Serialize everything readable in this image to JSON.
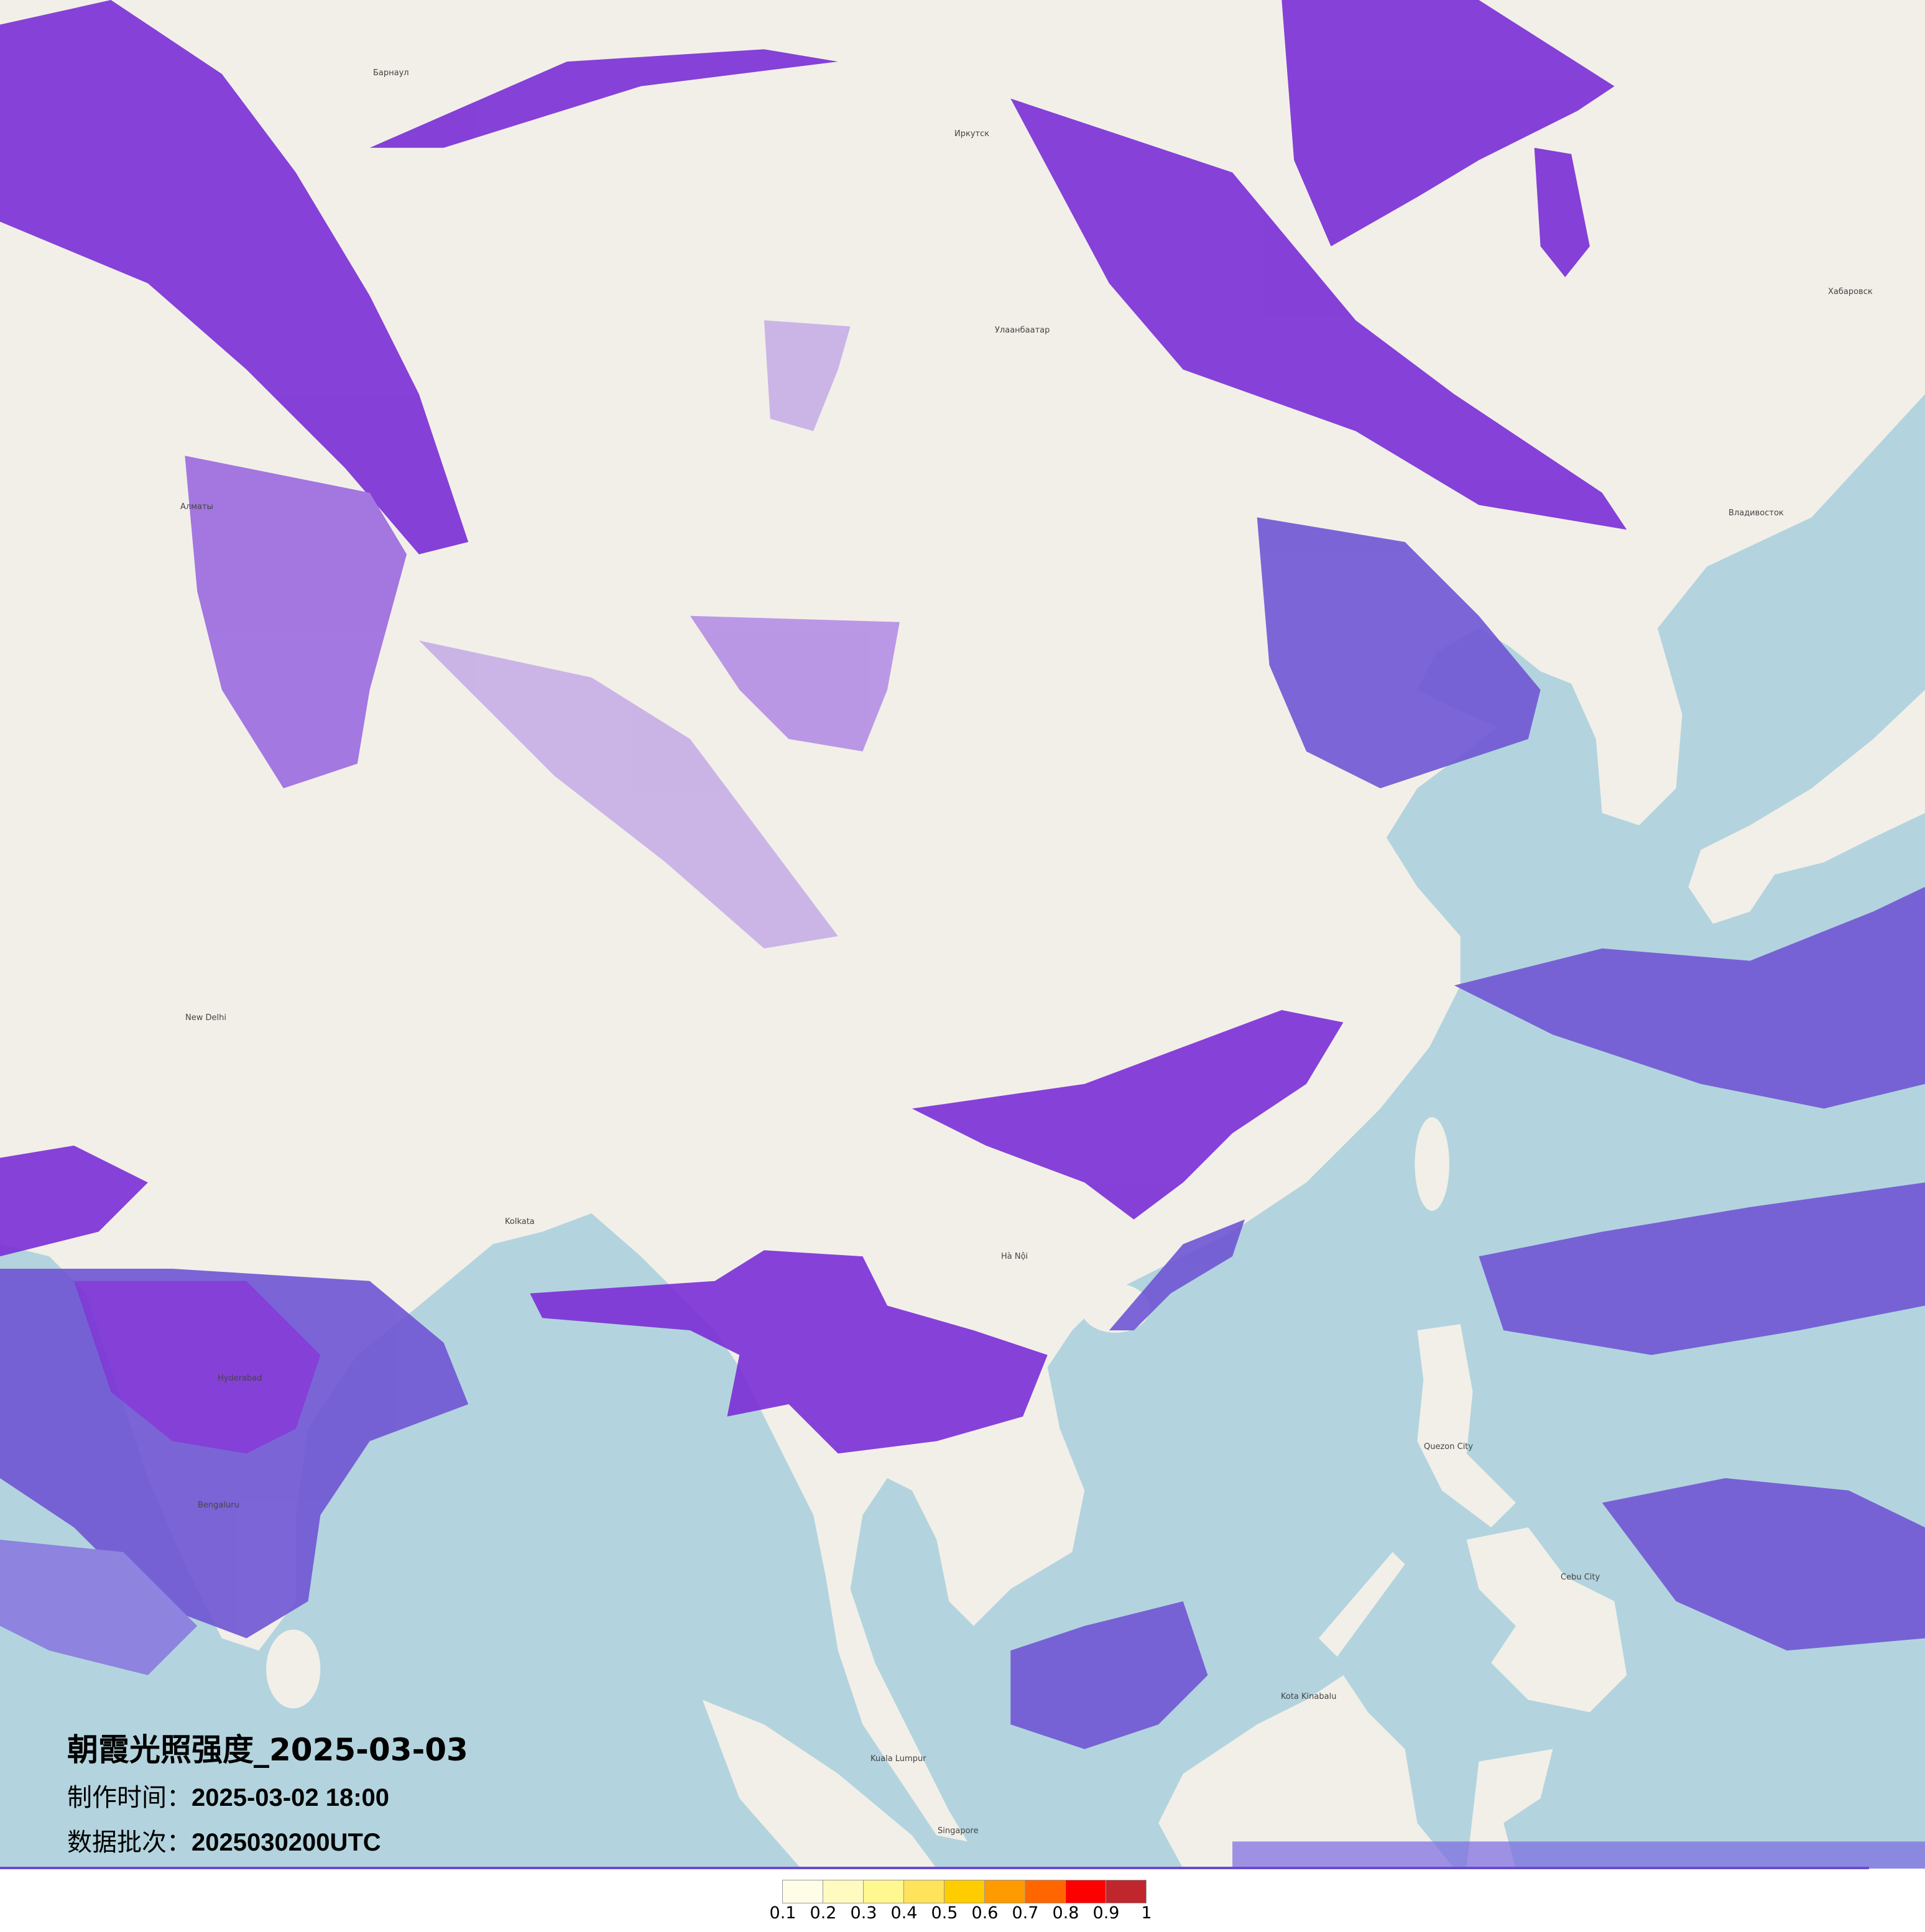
{
  "title": "朝霞光照强度_2025-03-03",
  "production_time": {
    "label": "制作时间：",
    "value": "2025-03-02 18:00"
  },
  "data_batch": {
    "label": "数据批次：",
    "value": "2025030200UTC"
  },
  "legend": {
    "colors": [
      "#fffde8",
      "#fffbc0",
      "#fff78f",
      "#ffe35a",
      "#ffcc00",
      "#ff9a00",
      "#ff6600",
      "#ff0000",
      "#c0272d"
    ],
    "labels": [
      "0.1",
      "0.2",
      "0.3",
      "0.4",
      "0.5",
      "0.6",
      "0.7",
      "0.8",
      "0.9",
      "1"
    ]
  },
  "map": {
    "land_color": "#f2efe9",
    "sea_color": "#b3d4de",
    "overlay_colors": {
      "strong": "#7a2ed6",
      "medium": "#6f55d4",
      "light": "#c6aee6"
    },
    "places": [
      "Улаанбаатар",
      "Хабаровск",
      "Барнаул",
      "Иркутск",
      "Алматы",
      "New Delhi",
      "Kolkata",
      "Hyderabad",
      "Bengaluru",
      "Hà Nội",
      "Quezon City",
      "Cebu City",
      "Kuala Lumpur",
      "Singapore",
      "Kota Kinabalu",
      "Владивосток"
    ]
  }
}
